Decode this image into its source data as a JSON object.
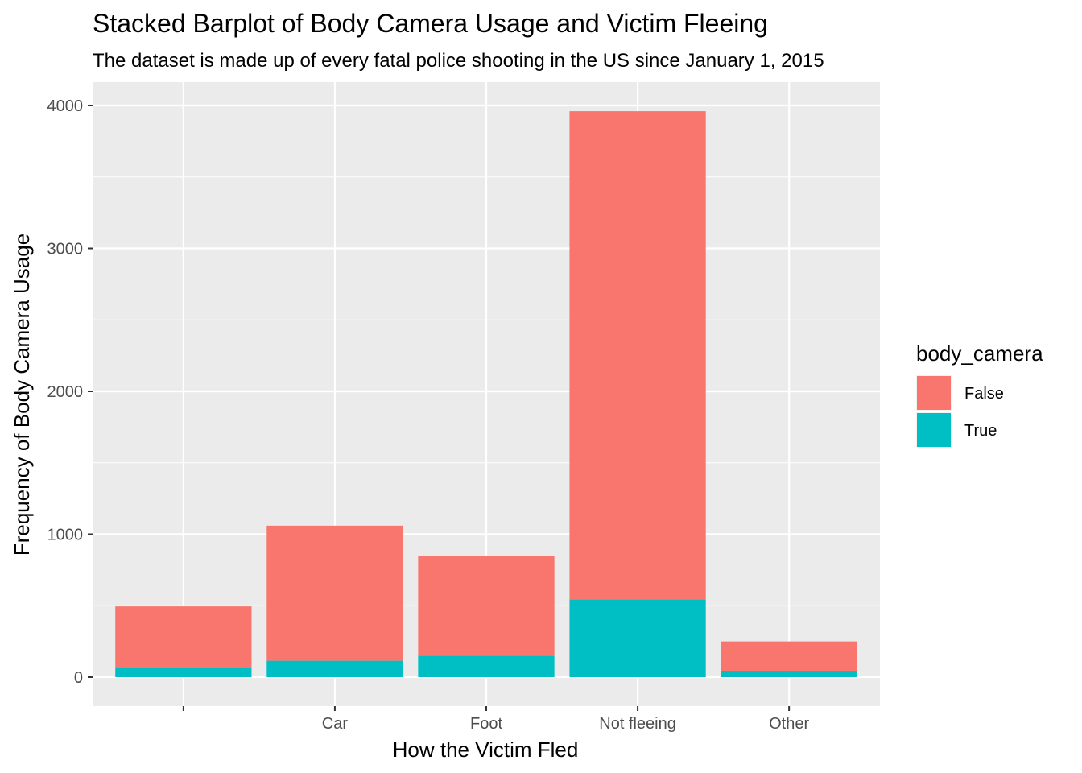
{
  "chart_data": {
    "type": "bar",
    "stacked": true,
    "title": "Stacked Barplot of Body Camera Usage and Victim Fleeing",
    "subtitle": "The dataset is made up of every fatal police shooting in the US since January 1, 2015",
    "xlabel": "How the Victim Fled",
    "ylabel": "Frequency of Body Camera Usage",
    "categories": [
      "",
      "Car",
      "Foot",
      "Not fleeing",
      "Other"
    ],
    "series": [
      {
        "name": "False",
        "color": "#F8766D",
        "values": [
          430,
          945,
          695,
          3415,
          205
        ]
      },
      {
        "name": "True",
        "color": "#00BFC4",
        "values": [
          65,
          115,
          150,
          545,
          45
        ]
      }
    ],
    "ylim": [
      0,
      4000
    ],
    "yticks": [
      0,
      1000,
      2000,
      3000,
      4000
    ],
    "grid": true,
    "panel_background": "#EBEBEB",
    "legend": {
      "title": "body_camera",
      "placement": "right"
    }
  }
}
